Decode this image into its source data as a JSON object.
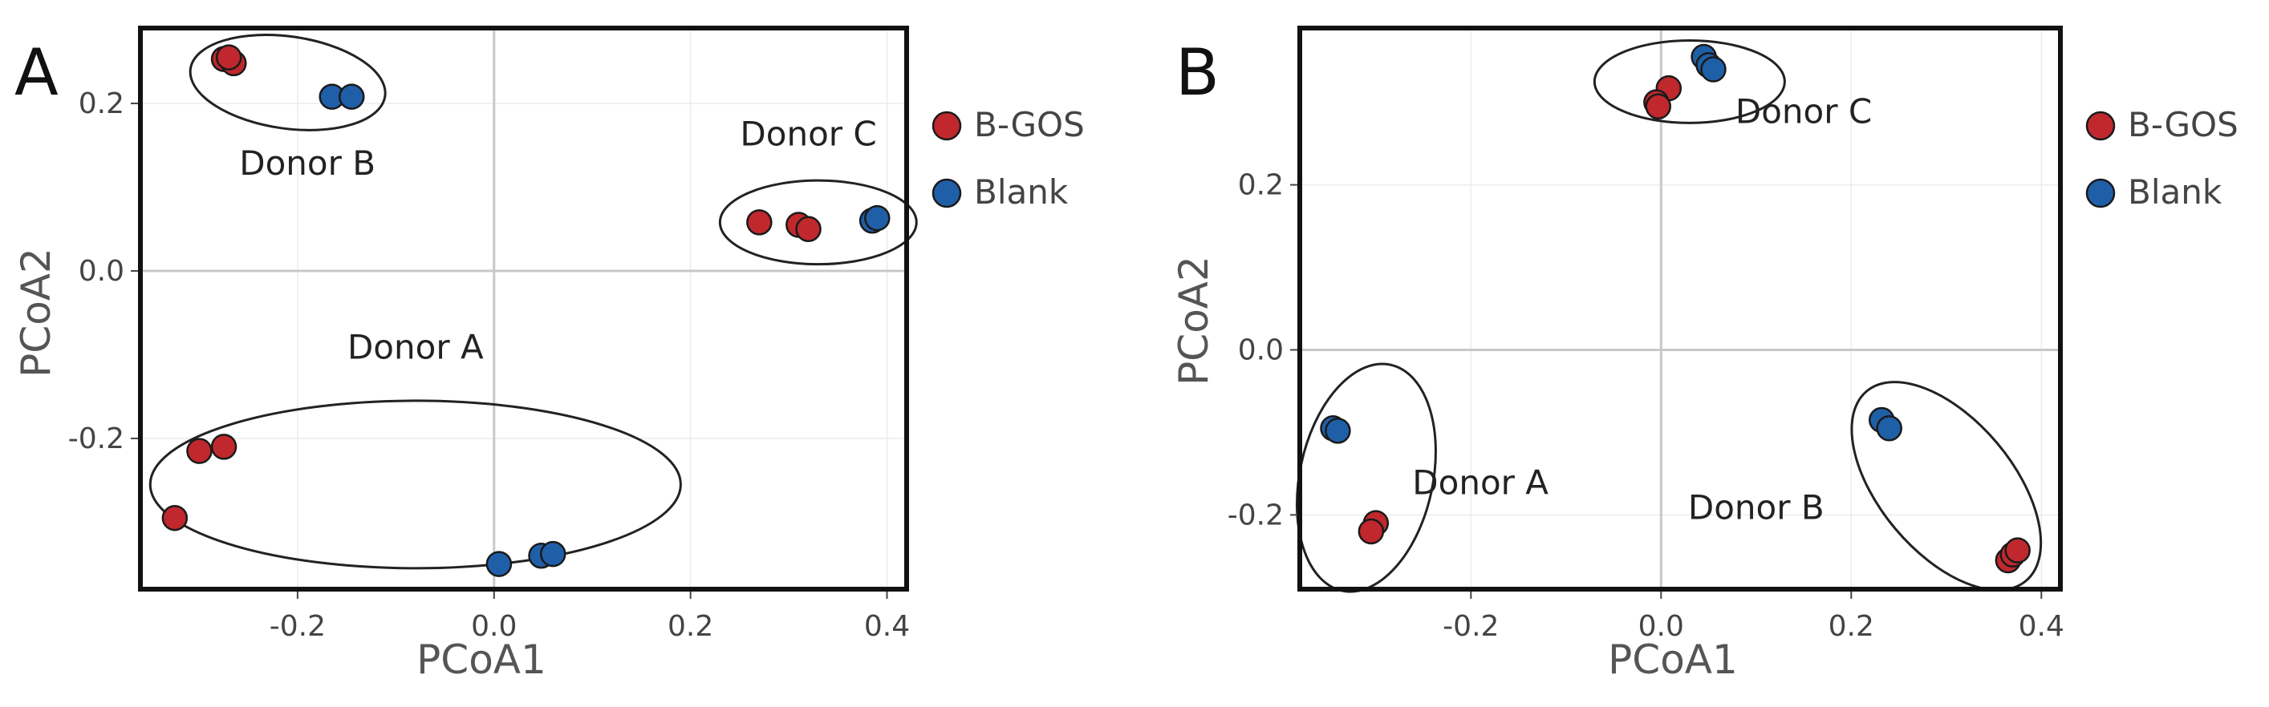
{
  "colors": {
    "bgos": "#c0282d",
    "blank": "#1f5fa8",
    "frame": "#111111",
    "grid": "#c8c8c8",
    "ellipse": "#222222"
  },
  "chart_data": [
    {
      "type": "scatter",
      "panel": "A",
      "xlabel": "PCoA1",
      "ylabel": "PCoA2",
      "xlim": [
        -0.36,
        0.42
      ],
      "ylim": [
        -0.38,
        0.29
      ],
      "xticks": [
        -0.2,
        0.0,
        0.2,
        0.4
      ],
      "yticks": [
        -0.2,
        0.0,
        0.2
      ],
      "xtick_labels": [
        "-0.2",
        "0.0",
        "0.2",
        "0.4"
      ],
      "ytick_labels": [
        "-0.2",
        "0.0",
        "0.2"
      ],
      "legend": {
        "position": "right",
        "entries": [
          {
            "label": "B-GOS",
            "series": "bgos"
          },
          {
            "label": "Blank",
            "series": "blank"
          }
        ]
      },
      "series": [
        {
          "name": "B-GOS",
          "key": "bgos",
          "points": [
            [
              -0.275,
              0.253
            ],
            [
              -0.265,
              0.248
            ],
            [
              -0.27,
              0.255
            ],
            [
              0.27,
              0.058
            ],
            [
              0.31,
              0.055
            ],
            [
              0.32,
              0.05
            ],
            [
              -0.3,
              -0.215
            ],
            [
              -0.275,
              -0.21
            ],
            [
              -0.325,
              -0.295
            ]
          ]
        },
        {
          "name": "Blank",
          "key": "blank",
          "points": [
            [
              -0.165,
              0.208
            ],
            [
              -0.145,
              0.208
            ],
            [
              0.385,
              0.06
            ],
            [
              0.39,
              0.063
            ],
            [
              0.005,
              -0.35
            ],
            [
              0.048,
              -0.34
            ],
            [
              0.06,
              -0.338
            ]
          ]
        }
      ],
      "groups": [
        {
          "label": "Donor A",
          "center": [
            -0.08,
            -0.255
          ],
          "radii": [
            0.27,
            0.1
          ],
          "label_at": [
            -0.08,
            -0.105
          ]
        },
        {
          "label": "Donor B",
          "center": [
            -0.21,
            0.225
          ],
          "radii": [
            0.1,
            0.055
          ],
          "label_at": [
            -0.19,
            0.115
          ]
        },
        {
          "label": "Donor C",
          "center": [
            0.33,
            0.058
          ],
          "radii": [
            0.1,
            0.05
          ],
          "label_at": [
            0.32,
            0.15
          ]
        }
      ]
    },
    {
      "type": "scatter",
      "panel": "B",
      "xlabel": "PCoA1",
      "ylabel": "PCoA2",
      "xlim": [
        -0.38,
        0.42
      ],
      "ylim": [
        -0.29,
        0.39
      ],
      "xticks": [
        -0.2,
        0.0,
        0.2,
        0.4
      ],
      "yticks": [
        -0.2,
        0.0,
        0.2
      ],
      "xtick_labels": [
        "-0.2",
        "0.0",
        "0.2",
        "0.4"
      ],
      "ytick_labels": [
        "-0.2",
        "0.0",
        "0.2"
      ],
      "legend": {
        "position": "right",
        "entries": [
          {
            "label": "B-GOS",
            "series": "bgos"
          },
          {
            "label": "Blank",
            "series": "blank"
          }
        ]
      },
      "series": [
        {
          "name": "B-GOS",
          "key": "bgos",
          "points": [
            [
              0.008,
              0.317
            ],
            [
              -0.005,
              0.3
            ],
            [
              -0.003,
              0.295
            ],
            [
              -0.3,
              -0.21
            ],
            [
              -0.305,
              -0.22
            ],
            [
              0.365,
              -0.255
            ],
            [
              0.37,
              -0.248
            ],
            [
              0.375,
              -0.243
            ]
          ]
        },
        {
          "name": "Blank",
          "key": "blank",
          "points": [
            [
              0.045,
              0.355
            ],
            [
              0.05,
              0.345
            ],
            [
              0.055,
              0.34
            ],
            [
              -0.345,
              -0.095
            ],
            [
              -0.34,
              -0.098
            ],
            [
              0.232,
              -0.085
            ],
            [
              0.24,
              -0.095
            ]
          ]
        }
      ],
      "groups": [
        {
          "label": "Donor A",
          "center": [
            -0.31,
            -0.155
          ],
          "radii": [
            0.07,
            0.14
          ],
          "label_at": [
            -0.19,
            -0.175
          ]
        },
        {
          "label": "Donor B",
          "center": [
            0.3,
            -0.165
          ],
          "radii": [
            0.07,
            0.15
          ],
          "label_at": [
            0.1,
            -0.205
          ]
        },
        {
          "label": "Donor C",
          "center": [
            0.03,
            0.325
          ],
          "radii": [
            0.1,
            0.05
          ],
          "label_at": [
            0.15,
            0.275
          ]
        }
      ]
    }
  ]
}
